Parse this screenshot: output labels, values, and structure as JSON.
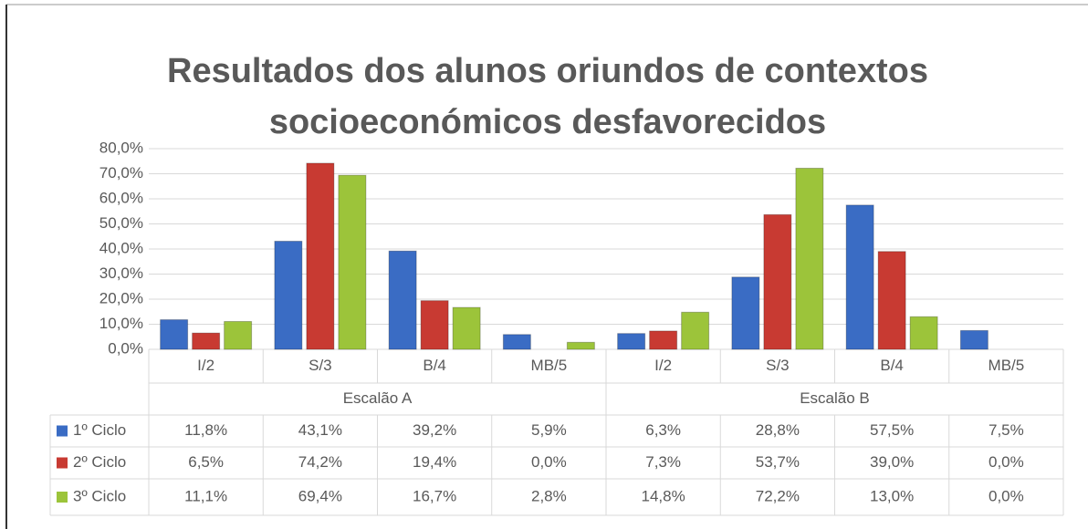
{
  "chart_data": {
    "type": "bar",
    "title": [
      "Resultados dos alunos oriundos de contextos",
      "socioeconómicos desfavorecidos"
    ],
    "groups": [
      "Escalão A",
      "Escalão B"
    ],
    "categories": [
      "I/2",
      "S/3",
      "B/4",
      "MB/5",
      "I/2",
      "S/3",
      "B/4",
      "MB/5"
    ],
    "series": [
      {
        "name": "1º Ciclo",
        "color": "#3a6cc4",
        "values": [
          11.8,
          43.1,
          39.2,
          5.9,
          6.3,
          28.8,
          57.5,
          7.5
        ],
        "value_labels": [
          "11,8%",
          "43,1%",
          "39,2%",
          "5,9%",
          "6,3%",
          "28,8%",
          "57,5%",
          "7,5%"
        ]
      },
      {
        "name": "2º Ciclo",
        "color": "#c83a32",
        "values": [
          6.5,
          74.2,
          19.4,
          0.0,
          7.3,
          53.7,
          39.0,
          0.0
        ],
        "value_labels": [
          "6,5%",
          "74,2%",
          "19,4%",
          "0,0%",
          "7,3%",
          "53,7%",
          "39,0%",
          "0,0%"
        ]
      },
      {
        "name": "3º Ciclo",
        "color": "#9cc43a",
        "values": [
          11.1,
          69.4,
          16.7,
          2.8,
          14.8,
          72.2,
          13.0,
          0.0
        ],
        "value_labels": [
          "11,1%",
          "69,4%",
          "16,7%",
          "2,8%",
          "14,8%",
          "72,2%",
          "13,0%",
          "0,0%"
        ]
      }
    ],
    "ylim": [
      0,
      80
    ],
    "yticks": [
      {
        "value": 0,
        "label": "0,0%"
      },
      {
        "value": 10,
        "label": "10,0%"
      },
      {
        "value": 20,
        "label": "20,0%"
      },
      {
        "value": 30,
        "label": "30,0%"
      },
      {
        "value": 40,
        "label": "40,0%"
      },
      {
        "value": 50,
        "label": "50,0%"
      },
      {
        "value": 60,
        "label": "60,0%"
      },
      {
        "value": 70,
        "label": "70,0%"
      },
      {
        "value": 80,
        "label": "80,0%"
      }
    ],
    "grid": true
  }
}
